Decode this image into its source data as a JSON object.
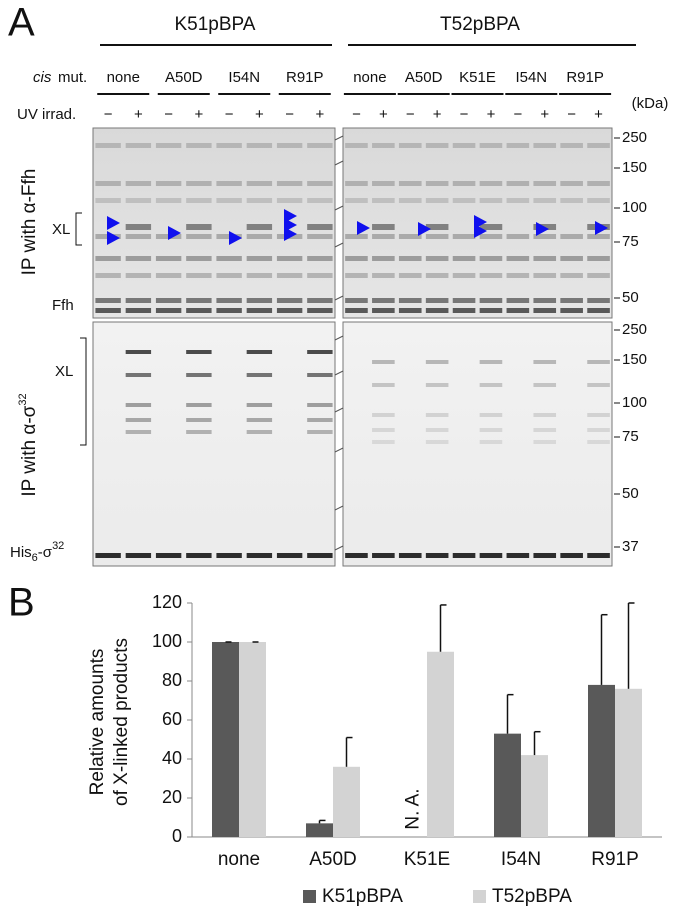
{
  "panel_a": {
    "label": "A",
    "constructs": [
      {
        "name": "K51pBPA",
        "mutations": [
          "none",
          "A50D",
          "I54N",
          "R91P"
        ]
      },
      {
        "name": "T52pBPA",
        "mutations": [
          "none",
          "A50D",
          "K51E",
          "I54N",
          "R91P"
        ]
      }
    ],
    "cis_label": [
      "cis",
      "mut."
    ],
    "uv_label": "UV irrad.",
    "uv_signs": [
      "−",
      "+"
    ],
    "kda_unit": "(kDa)",
    "top_gel": {
      "title": "IP with α-Ffh",
      "xl": "XL",
      "band": "Ffh",
      "markers": [
        250,
        150,
        100,
        75,
        50
      ]
    },
    "bottom_gel": {
      "title": [
        "IP with α-σ",
        "32"
      ],
      "xl": "XL",
      "band": [
        "His",
        "6",
        "-σ",
        "32"
      ],
      "markers": [
        250,
        150,
        100,
        75,
        50,
        37
      ]
    }
  },
  "chart_data": {
    "type": "bar",
    "panel_label": "B",
    "y_label": [
      "Relative amounts",
      "of X-linked products"
    ],
    "categories": [
      "none",
      "A50D",
      "K51E",
      "I54N",
      "R91P"
    ],
    "series": [
      {
        "name": "K51pBPA",
        "color": "#595959",
        "values": [
          100,
          7,
          null,
          53,
          78
        ],
        "errors": [
          0,
          1.5,
          null,
          20,
          36
        ]
      },
      {
        "name": "T52pBPA",
        "color": "#d3d3d3",
        "values": [
          100,
          36,
          95,
          42,
          76
        ],
        "errors": [
          0,
          15,
          24,
          12,
          44
        ]
      }
    ],
    "annotations": [
      {
        "text": "N. A.",
        "category": "K51E",
        "series": "K51pBPA"
      }
    ],
    "ylim": [
      0,
      120
    ],
    "yticks": [
      0,
      20,
      40,
      60,
      80,
      100,
      120
    ],
    "grid": false,
    "legend": "bottom"
  }
}
